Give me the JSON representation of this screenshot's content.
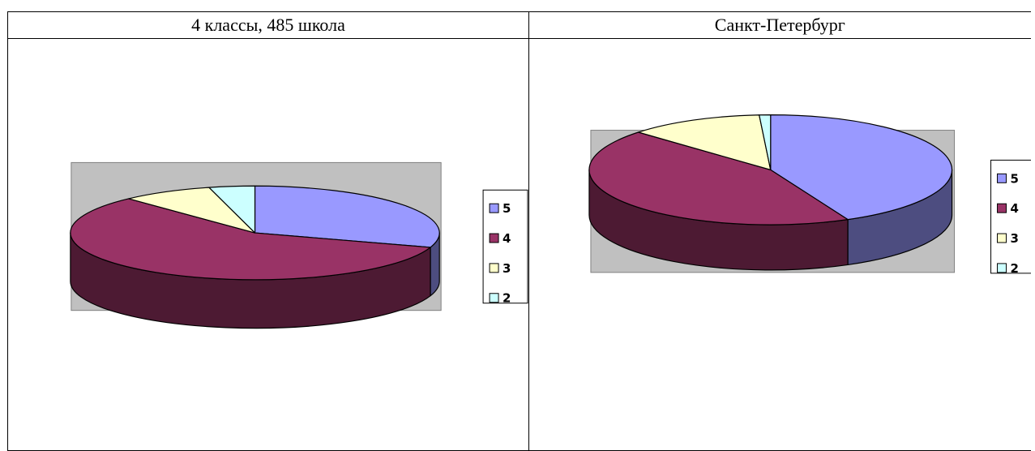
{
  "headers": {
    "left": "4 классы, 485 школа",
    "right": "Санкт-Петербург"
  },
  "chart_data": [
    {
      "type": "pie",
      "title": "4 классы, 485 школа",
      "categories": [
        "5",
        "4",
        "3",
        "2"
      ],
      "values": [
        30,
        58,
        8,
        4
      ],
      "colors": [
        "#9999FF",
        "#993366",
        "#FFFFCC",
        "#CCFFFF"
      ],
      "legend_position": "right",
      "three_d": true
    },
    {
      "type": "pie",
      "title": "Санкт-Петербург",
      "categories": [
        "5",
        "4",
        "3",
        "2"
      ],
      "values": [
        43,
        44,
        12,
        1
      ],
      "colors": [
        "#9999FF",
        "#993366",
        "#FFFFCC",
        "#CCFFFF"
      ],
      "legend_position": "right",
      "three_d": true
    }
  ]
}
